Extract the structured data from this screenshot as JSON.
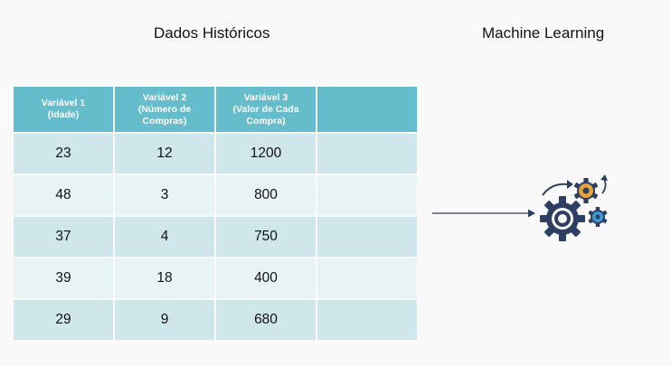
{
  "titles": {
    "left": "Dados Históricos",
    "right": "Machine Learning"
  },
  "table": {
    "headers": [
      "Variável 1\n(Idade)",
      "Variável 2\n(Número de\nCompras)",
      "Variável 3\n(Valor de Cada\nCompra)",
      ""
    ],
    "rows": [
      [
        "23",
        "12",
        "1200",
        ""
      ],
      [
        "48",
        "3",
        "800",
        ""
      ],
      [
        "37",
        "4",
        "750",
        ""
      ],
      [
        "39",
        "18",
        "400",
        ""
      ],
      [
        "29",
        "9",
        "680",
        ""
      ]
    ]
  },
  "colors": {
    "header": "#65bccb",
    "row_dark": "#cfe6eb",
    "row_light": "#e8f3f5",
    "gear_dark": "#2d3e63",
    "gear_orange": "#e8a43a",
    "gear_blue": "#3b9fd6"
  },
  "icons": {
    "gears": "gears-icon",
    "arrow": "arrow-right-icon"
  }
}
